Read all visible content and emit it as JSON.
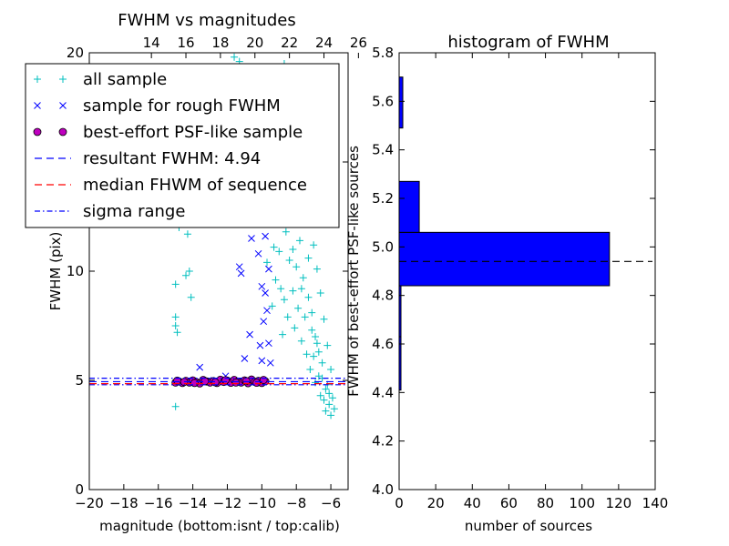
{
  "chart_data": [
    {
      "type": "scatter",
      "title": "FWHM vs magnitudes",
      "xlabel": "magnitude (bottom:isnt / top:calib)",
      "ylabel": "FWHM (pix)",
      "xlim": [
        -20,
        -5
      ],
      "ylim": [
        0,
        20
      ],
      "x_ticks": [
        -20,
        -18,
        -16,
        -14,
        -12,
        -10,
        -8,
        -6
      ],
      "x_tick_labels": [
        "−20",
        "−18",
        "−16",
        "−14",
        "−12",
        "−10",
        "−8",
        "−6"
      ],
      "top_ticks": [
        14,
        16,
        18,
        20,
        22,
        24,
        26
      ],
      "top_offset": 30.4,
      "y_ticks": [
        0,
        5,
        10,
        15,
        20
      ],
      "y_tick_labels": [
        "0",
        "5",
        "10",
        "15",
        "20"
      ],
      "legend_placement": "upper-left",
      "legend": [
        {
          "label": "all sample",
          "marker": "plus",
          "color": "#00bfbf"
        },
        {
          "label": "sample for rough FWHM",
          "marker": "x",
          "color": "#0000ff"
        },
        {
          "label": "best-effort PSF-like sample",
          "marker": "circle",
          "color": "#bf00bf"
        },
        {
          "label": "resultant FWHM: 4.94",
          "marker": "dashed",
          "color": "#0000ff"
        },
        {
          "label": "median FHWM of sequence",
          "marker": "dashed",
          "color": "#ff0000"
        },
        {
          "label": "sigma range",
          "marker": "dashdot",
          "color": "#0000ff"
        }
      ],
      "lines": {
        "resultant_fwhm": 4.94,
        "median_fwhm": 4.85,
        "sigma_low": 4.8,
        "sigma_high": 5.1
      },
      "series": [
        {
          "name": "all sample",
          "points": [
            [
              -15,
              7.9
            ],
            [
              -15,
              7.5
            ],
            [
              -14.9,
              7.2
            ],
            [
              -15,
              3.8
            ],
            [
              -15,
              9.4
            ],
            [
              -14.8,
              12
            ],
            [
              -14.5,
              16.5
            ],
            [
              -14.3,
              11.7
            ],
            [
              -14.4,
              9.8
            ],
            [
              -14.2,
              10
            ],
            [
              -14.1,
              8.8
            ],
            [
              -14.0,
              15.1
            ],
            [
              -13.7,
              15.3
            ],
            [
              -13.2,
              14.2
            ],
            [
              -12.8,
              15.2
            ],
            [
              -12.5,
              13.8
            ],
            [
              -12.0,
              14.8
            ],
            [
              -11.6,
              19.8
            ],
            [
              -11.3,
              19.6
            ],
            [
              -10.8,
              16.8
            ],
            [
              -10.5,
              15.3
            ],
            [
              -10.0,
              16.2
            ],
            [
              -9.9,
              12.5
            ],
            [
              -9.7,
              10.4
            ],
            [
              -9.6,
              14.8
            ],
            [
              -9.4,
              13.2
            ],
            [
              -9.3,
              11.1
            ],
            [
              -9.2,
              9.6
            ],
            [
              -9.1,
              12.8
            ],
            [
              -9.0,
              10.9
            ],
            [
              -8.9,
              9.2
            ],
            [
              -8.8,
              13.5
            ],
            [
              -8.7,
              8.7
            ],
            [
              -8.6,
              11.8
            ],
            [
              -8.5,
              7.9
            ],
            [
              -8.4,
              10.5
            ],
            [
              -8.3,
              12.3
            ],
            [
              -8.2,
              9.1
            ],
            [
              -8.1,
              7.4
            ],
            [
              -8.0,
              10.2
            ],
            [
              -7.9,
              8.3
            ],
            [
              -7.8,
              11.4
            ],
            [
              -7.7,
              6.8
            ],
            [
              -7.6,
              9.7
            ],
            [
              -7.5,
              7.9
            ],
            [
              -7.4,
              6.2
            ],
            [
              -7.3,
              8.8
            ],
            [
              -7.2,
              5.5
            ],
            [
              -7.1,
              7.3
            ],
            [
              -7.0,
              6.1
            ],
            [
              -6.9,
              4.9
            ],
            [
              -6.8,
              6.7
            ],
            [
              -6.7,
              5.2
            ],
            [
              -6.6,
              4.3
            ],
            [
              -6.5,
              5.8
            ],
            [
              -6.4,
              4.1
            ],
            [
              -6.3,
              3.6
            ],
            [
              -6.2,
              4.8
            ],
            [
              -6.1,
              3.9
            ],
            [
              -6.0,
              3.4
            ],
            [
              -5.9,
              4.2
            ],
            [
              -5.8,
              3.7
            ],
            [
              -9.5,
              16.5
            ],
            [
              -9.2,
              17.8
            ],
            [
              -8.9,
              15.6
            ],
            [
              -8.6,
              16.9
            ],
            [
              -8.3,
              18.2
            ],
            [
              -8.0,
              15.1
            ],
            [
              -7.8,
              14.2
            ],
            [
              -7.5,
              13.1
            ],
            [
              -7.2,
              12.4
            ],
            [
              -7.0,
              11.2
            ],
            [
              -6.8,
              10.1
            ],
            [
              -6.6,
              9.0
            ],
            [
              -6.4,
              7.8
            ],
            [
              -6.2,
              6.6
            ],
            [
              -6.0,
              5.5
            ],
            [
              -9.8,
              19.2
            ],
            [
              -8.7,
              19.5
            ],
            [
              -7.9,
              18.8
            ],
            [
              -8.5,
              14.5
            ],
            [
              -9.0,
              13.9
            ],
            [
              -7.6,
              12.9
            ],
            [
              -7.3,
              10.6
            ],
            [
              -8.2,
              11.0
            ],
            [
              -9.4,
              8.4
            ],
            [
              -8.8,
              7.1
            ],
            [
              -7.7,
              9.2
            ],
            [
              -7.1,
              8.1
            ],
            [
              -6.9,
              7.0
            ],
            [
              -6.7,
              6.3
            ],
            [
              -6.5,
              5.1
            ],
            [
              -6.3,
              4.6
            ],
            [
              -6.1,
              4.4
            ]
          ]
        },
        {
          "name": "sample for rough FWHM",
          "points": [
            [
              -13.6,
              5.6
            ],
            [
              -13.1,
              5.0
            ],
            [
              -12.1,
              5.2
            ],
            [
              -11.6,
              12.2
            ],
            [
              -11.3,
              10.2
            ],
            [
              -11.0,
              12.8
            ],
            [
              -10.9,
              13.0
            ],
            [
              -10.6,
              11.5
            ],
            [
              -10.5,
              13.7
            ],
            [
              -10.4,
              16.1
            ],
            [
              -10.3,
              16.4
            ],
            [
              -10.2,
              10.8
            ],
            [
              -10.1,
              15.4
            ],
            [
              -10.0,
              9.3
            ],
            [
              -9.9,
              14.6
            ],
            [
              -9.9,
              7.7
            ],
            [
              -9.8,
              11.6
            ],
            [
              -9.8,
              9.0
            ],
            [
              -9.7,
              13.4
            ],
            [
              -9.7,
              8.2
            ],
            [
              -9.6,
              10.1
            ],
            [
              -9.6,
              6.7
            ],
            [
              -9.5,
              12.5
            ],
            [
              -9.5,
              5.8
            ],
            [
              -10.1,
              6.6
            ],
            [
              -10.7,
              7.1
            ],
            [
              -11.2,
              9.9
            ],
            [
              -9.9,
              17.3
            ],
            [
              -10.2,
              14.2
            ],
            [
              -9.8,
              15.9
            ],
            [
              -10.0,
              5.9
            ],
            [
              -11.0,
              6.0
            ]
          ]
        },
        {
          "name": "best-effort PSF-like sample",
          "points": [
            [
              -15.0,
              4.9
            ],
            [
              -14.8,
              4.95
            ],
            [
              -14.6,
              4.88
            ],
            [
              -14.4,
              4.98
            ],
            [
              -14.2,
              4.9
            ],
            [
              -14.0,
              5.0
            ],
            [
              -13.8,
              4.92
            ],
            [
              -13.6,
              4.86
            ],
            [
              -13.4,
              5.02
            ],
            [
              -13.2,
              4.95
            ],
            [
              -13.0,
              4.9
            ],
            [
              -12.8,
              4.97
            ],
            [
              -12.6,
              4.88
            ],
            [
              -12.4,
              5.03
            ],
            [
              -12.2,
              4.93
            ],
            [
              -12.0,
              4.99
            ],
            [
              -11.8,
              4.89
            ],
            [
              -11.6,
              5.02
            ],
            [
              -11.4,
              4.94
            ],
            [
              -11.2,
              4.9
            ],
            [
              -11.0,
              5.0
            ],
            [
              -10.8,
              4.87
            ],
            [
              -10.6,
              5.04
            ],
            [
              -10.4,
              4.93
            ],
            [
              -10.2,
              4.98
            ],
            [
              -10.0,
              4.88
            ],
            [
              -9.8,
              4.96
            ],
            [
              -14.9,
              4.99
            ],
            [
              -14.5,
              4.93
            ],
            [
              -13.9,
              4.88
            ],
            [
              -13.3,
              4.96
            ],
            [
              -12.7,
              4.91
            ],
            [
              -12.1,
              5.01
            ],
            [
              -11.5,
              4.9
            ],
            [
              -10.9,
              4.97
            ],
            [
              -10.3,
              4.89
            ],
            [
              -9.9,
              5.02
            ]
          ]
        }
      ]
    },
    {
      "type": "bar",
      "orientation": "horizontal",
      "title": "histogram of FWHM",
      "xlabel": "number of sources",
      "ylabel": "FWHM of best-effort PSF-like sources",
      "xlim": [
        0,
        140
      ],
      "ylim": [
        4.0,
        5.8
      ],
      "x_ticks": [
        0,
        20,
        40,
        60,
        80,
        100,
        120,
        140
      ],
      "x_tick_labels": [
        "0",
        "20",
        "40",
        "60",
        "80",
        "100",
        "120",
        "140"
      ],
      "y_ticks": [
        4.0,
        4.2,
        4.4,
        4.6,
        4.8,
        5.0,
        5.2,
        5.4,
        5.6,
        5.8
      ],
      "y_tick_labels": [
        "4.0",
        "4.2",
        "4.4",
        "4.6",
        "4.8",
        "5.0",
        "5.2",
        "5.4",
        "5.6",
        "5.8"
      ],
      "bins": [
        {
          "low": 4.41,
          "high": 4.63,
          "count": 1
        },
        {
          "low": 4.63,
          "high": 4.84,
          "count": 1
        },
        {
          "low": 4.84,
          "high": 5.06,
          "count": 115
        },
        {
          "low": 5.06,
          "high": 5.27,
          "count": 11
        },
        {
          "low": 5.27,
          "high": 5.49,
          "count": 0
        },
        {
          "low": 5.49,
          "high": 5.7,
          "count": 2
        }
      ],
      "reference_line": 4.94,
      "bar_color": "#0000ff"
    }
  ]
}
